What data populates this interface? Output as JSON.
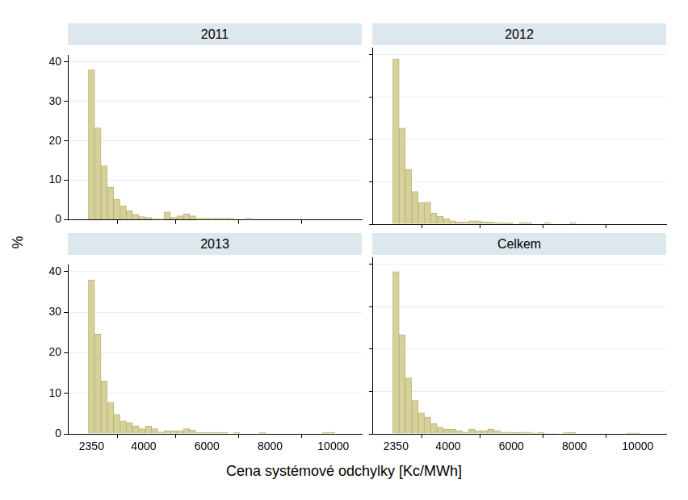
{
  "xlabel": "Cena systémové odchylky [Kc/MWh]",
  "ylabel": "%",
  "chart_data": [
    {
      "type": "histogram",
      "title": "2011",
      "bins": [
        2250,
        2450,
        2650,
        2850,
        3050,
        3250,
        3450,
        3650,
        3850,
        4050,
        4250,
        4450,
        4650,
        4850,
        5050,
        5250,
        5450,
        5650,
        5850,
        6050,
        6250,
        6450,
        6650,
        6850,
        7050,
        7250,
        7450,
        7650,
        7850,
        8050,
        8250,
        8450,
        8650,
        8850,
        9050,
        9250,
        9450,
        9650,
        9850,
        10050
      ],
      "values": [
        38,
        23.3,
        13.7,
        8.3,
        5.2,
        3.6,
        2.3,
        1.4,
        0.8,
        0.6,
        0.3,
        0.3,
        2.0,
        0.6,
        1.0,
        1.5,
        1.0,
        0.4,
        0.4,
        0.4,
        0.4,
        0.4,
        0.4,
        0,
        0,
        0.4,
        0,
        0,
        0,
        0,
        0,
        0,
        0,
        0,
        0,
        0,
        0,
        0,
        0
      ],
      "color": "#d6d09a",
      "xlim": [
        1600,
        10900
      ],
      "ylim": [
        0,
        41.7
      ],
      "xticks": [
        2350,
        4000,
        6000,
        8000,
        10000
      ],
      "yticks": [
        0,
        10,
        20,
        30,
        40
      ],
      "grid": true,
      "tick_labels": "y"
    },
    {
      "type": "histogram",
      "title": "2012",
      "bins": [
        2250,
        2450,
        2650,
        2850,
        3050,
        3250,
        3450,
        3650,
        3850,
        4050,
        4250,
        4450,
        4650,
        4850,
        5050,
        5250,
        5450,
        5650,
        5850,
        6050,
        6250,
        6450,
        6650,
        6850,
        7050,
        7250,
        7450,
        7650,
        7850,
        8050,
        8250,
        8450,
        8650,
        8850,
        9050,
        9250,
        9450,
        9650,
        9850,
        10050
      ],
      "values": [
        39,
        22.7,
        13,
        7.7,
        5.1,
        5.2,
        2.6,
        1.9,
        1.3,
        0.8,
        0.5,
        0.5,
        0.8,
        0.8,
        0.5,
        0.5,
        0.4,
        0.3,
        0.3,
        0,
        0.4,
        0.4,
        0,
        0,
        0.4,
        0,
        0,
        0,
        0.4,
        0,
        0,
        0,
        0,
        0,
        0,
        0,
        0,
        0,
        0
      ],
      "color": "#d6d09a",
      "xlim": [
        1600,
        10900
      ],
      "ylim": [
        0,
        41.7
      ],
      "xticks": [
        2350,
        4000,
        6000,
        8000,
        10000
      ],
      "yticks": [
        0,
        10,
        20,
        30,
        40
      ],
      "grid": true,
      "tick_labels": false
    },
    {
      "type": "histogram",
      "title": "2013",
      "bins": [
        2250,
        2450,
        2650,
        2850,
        3050,
        3250,
        3450,
        3650,
        3850,
        4050,
        4250,
        4450,
        4650,
        4850,
        5050,
        5250,
        5450,
        5650,
        5850,
        6050,
        6250,
        6450,
        6650,
        6850,
        7050,
        7250,
        7450,
        7650,
        7850,
        8050,
        8250,
        8450,
        8650,
        8850,
        9050,
        9250,
        9450,
        9650,
        9850,
        10050
      ],
      "values": [
        38,
        24.6,
        13,
        7.8,
        4.8,
        3.2,
        2.7,
        1.9,
        1.3,
        1.9,
        1.3,
        0.5,
        0.8,
        0.8,
        0.8,
        1.3,
        1.0,
        0.4,
        0.4,
        0.4,
        0.4,
        0.4,
        0,
        0.4,
        0,
        0,
        0,
        0.4,
        0,
        0,
        0,
        0,
        0,
        0,
        0,
        0,
        0,
        0.4,
        0.4
      ],
      "color": "#d6d09a",
      "xlim": [
        1600,
        10900
      ],
      "ylim": [
        0,
        41.7
      ],
      "xticks": [
        2350,
        4000,
        6000,
        8000,
        10000
      ],
      "yticks": [
        0,
        10,
        20,
        30,
        40
      ],
      "grid": true
    },
    {
      "type": "histogram",
      "title": "Celkem",
      "bins": [
        2250,
        2450,
        2650,
        2850,
        3050,
        3250,
        3450,
        3650,
        3850,
        4050,
        4250,
        4450,
        4650,
        4850,
        5050,
        5250,
        5450,
        5650,
        5850,
        6050,
        6250,
        6450,
        6650,
        6850,
        7050,
        7250,
        7450,
        7650,
        7850,
        8050,
        8250,
        8450,
        8650,
        8850,
        9050,
        9250,
        9450,
        9650,
        9850,
        10050
      ],
      "values": [
        38.3,
        23.4,
        13.2,
        7.9,
        5.0,
        4.0,
        2.5,
        1.6,
        1.1,
        1.1,
        0.7,
        0.4,
        1.1,
        0.7,
        0.8,
        1.1,
        0.8,
        0.4,
        0.4,
        0.3,
        0.4,
        0.4,
        0.2,
        0.3,
        0.1,
        0.1,
        0,
        0.3,
        0.3,
        0,
        0,
        0,
        0,
        0,
        0,
        0,
        0,
        0.2,
        0.2
      ],
      "color": "#d6d09a",
      "xlim": [
        1600,
        10900
      ],
      "ylim": [
        0,
        41.7
      ],
      "xticks": [
        2350,
        4000,
        6000,
        8000,
        10000
      ],
      "yticks": [
        0,
        10,
        20,
        30,
        40
      ],
      "grid": true,
      "tick_labels": "x"
    }
  ]
}
